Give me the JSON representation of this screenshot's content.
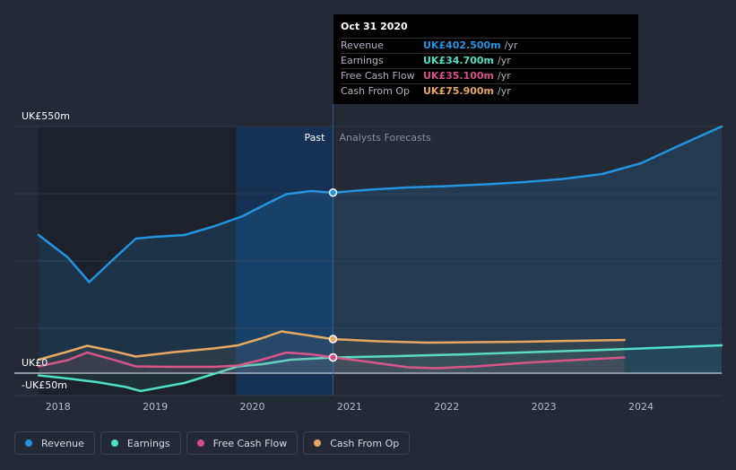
{
  "chart_data": {
    "type": "line",
    "title": "",
    "x_range": [
      2017.55,
      2024.83
    ],
    "ylim": [
      -50,
      550
    ],
    "y_tick_labels": [
      {
        "value": 550,
        "label": "UK£550m"
      },
      {
        "value": 0,
        "label": "UK£0"
      },
      {
        "value": -50,
        "label": "-UK£50m"
      }
    ],
    "x_ticks": [
      {
        "value": 2018,
        "label": "2018"
      },
      {
        "value": 2019,
        "label": "2019"
      },
      {
        "value": 2020,
        "label": "2020"
      },
      {
        "value": 2021,
        "label": "2021"
      },
      {
        "value": 2022,
        "label": "2022"
      },
      {
        "value": 2023,
        "label": "2023"
      },
      {
        "value": 2024,
        "label": "2024"
      }
    ],
    "past_label": "Past",
    "forecast_label": "Analysts Forecasts",
    "present_x": 2020.83,
    "highlight_band": [
      2019.83,
      2020.83
    ],
    "series": [
      {
        "name": "Revenue",
        "color": "#2394df",
        "fill": true,
        "points": [
          [
            2017.8,
            308
          ],
          [
            2018.1,
            258
          ],
          [
            2018.32,
            203
          ],
          [
            2018.55,
            250
          ],
          [
            2018.8,
            300
          ],
          [
            2019.0,
            304
          ],
          [
            2019.3,
            308
          ],
          [
            2019.6,
            327
          ],
          [
            2019.9,
            350
          ],
          [
            2020.15,
            378
          ],
          [
            2020.35,
            399
          ],
          [
            2020.6,
            406
          ],
          [
            2020.83,
            402.5
          ],
          [
            2021.2,
            409
          ],
          [
            2021.6,
            414
          ],
          [
            2022.0,
            417
          ],
          [
            2022.4,
            421
          ],
          [
            2022.8,
            426
          ],
          [
            2023.2,
            433
          ],
          [
            2023.6,
            444
          ],
          [
            2024.0,
            468
          ],
          [
            2024.4,
            508
          ],
          [
            2024.83,
            550
          ]
        ]
      },
      {
        "name": "Earnings",
        "color": "#4fe0c8",
        "fill": false,
        "points": [
          [
            2017.8,
            -5
          ],
          [
            2018.1,
            -12
          ],
          [
            2018.4,
            -20
          ],
          [
            2018.7,
            -31
          ],
          [
            2018.85,
            -40
          ],
          [
            2019.0,
            -34
          ],
          [
            2019.3,
            -22
          ],
          [
            2019.6,
            -2
          ],
          [
            2019.85,
            15
          ],
          [
            2020.1,
            20
          ],
          [
            2020.4,
            30
          ],
          [
            2020.83,
            34.7
          ],
          [
            2021.5,
            38
          ],
          [
            2022.2,
            42
          ],
          [
            2022.9,
            47
          ],
          [
            2023.5,
            51
          ],
          [
            2024.0,
            55
          ],
          [
            2024.83,
            62
          ]
        ]
      },
      {
        "name": "Free Cash Flow",
        "color": "#d74f8a",
        "fill": false,
        "points": [
          [
            2017.8,
            15
          ],
          [
            2018.1,
            29
          ],
          [
            2018.3,
            46
          ],
          [
            2018.6,
            28
          ],
          [
            2018.8,
            15
          ],
          [
            2019.2,
            14
          ],
          [
            2019.6,
            14
          ],
          [
            2019.85,
            17
          ],
          [
            2020.1,
            30
          ],
          [
            2020.35,
            46
          ],
          [
            2020.6,
            42
          ],
          [
            2020.83,
            35.1
          ],
          [
            2021.2,
            25
          ],
          [
            2021.6,
            13
          ],
          [
            2021.9,
            11
          ],
          [
            2022.3,
            15
          ],
          [
            2022.8,
            23
          ],
          [
            2023.3,
            29
          ],
          [
            2023.83,
            35
          ]
        ]
      },
      {
        "name": "Cash From Op",
        "color": "#e7a862",
        "fill": false,
        "points": [
          [
            2017.8,
            30
          ],
          [
            2018.1,
            48
          ],
          [
            2018.3,
            61
          ],
          [
            2018.55,
            50
          ],
          [
            2018.8,
            37
          ],
          [
            2019.2,
            47
          ],
          [
            2019.6,
            55
          ],
          [
            2019.85,
            62
          ],
          [
            2020.1,
            78
          ],
          [
            2020.3,
            93
          ],
          [
            2020.55,
            85
          ],
          [
            2020.83,
            75.9
          ],
          [
            2021.3,
            71
          ],
          [
            2021.8,
            68
          ],
          [
            2022.3,
            69
          ],
          [
            2022.8,
            70
          ],
          [
            2023.3,
            72
          ],
          [
            2023.83,
            74
          ]
        ]
      }
    ]
  },
  "tooltip": {
    "date": "Oct 31 2020",
    "rows": [
      {
        "name": "Revenue",
        "value": "UK£402.500m",
        "unit": "/yr",
        "color": "#2394df"
      },
      {
        "name": "Earnings",
        "value": "UK£34.700m",
        "unit": "/yr",
        "color": "#4fe0c8"
      },
      {
        "name": "Free Cash Flow",
        "value": "UK£35.100m",
        "unit": "/yr",
        "color": "#d74f8a"
      },
      {
        "name": "Cash From Op",
        "value": "UK£75.900m",
        "unit": "/yr",
        "color": "#e7a862"
      }
    ]
  },
  "legend": [
    {
      "label": "Revenue",
      "color": "#2394df"
    },
    {
      "label": "Earnings",
      "color": "#4fe0c8"
    },
    {
      "label": "Free Cash Flow",
      "color": "#d74f8a"
    },
    {
      "label": "Cash From Op",
      "color": "#e7a862"
    }
  ]
}
